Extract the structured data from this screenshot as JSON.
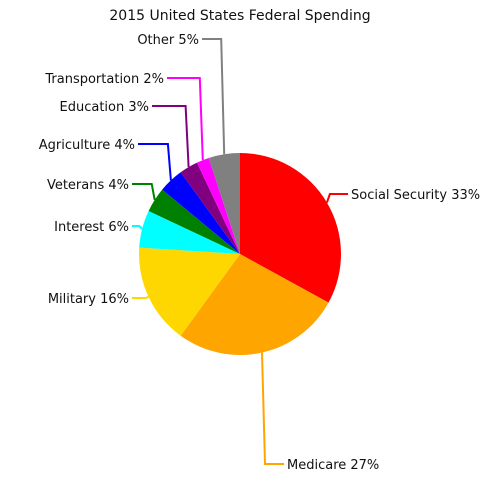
{
  "chart_data": {
    "type": "pie",
    "title": "2015 United States Federal Spending",
    "slices": [
      {
        "label": "Social Security 33%",
        "name": "Social Security",
        "value": 33,
        "color": "#ff0000"
      },
      {
        "label": "Medicare 27%",
        "name": "Medicare",
        "value": 27,
        "color": "#ffa500"
      },
      {
        "label": "Military 16%",
        "name": "Military",
        "value": 16,
        "color": "#ffd700"
      },
      {
        "label": "Interest 6%",
        "name": "Interest",
        "value": 6,
        "color": "#00ffff"
      },
      {
        "label": "Veterans 4%",
        "name": "Veterans",
        "value": 4,
        "color": "#008000"
      },
      {
        "label": "Agriculture 4%",
        "name": "Agriculture",
        "value": 4,
        "color": "#0000ff"
      },
      {
        "label": "Education 3%",
        "name": "Education",
        "value": 3,
        "color": "#800080"
      },
      {
        "label": "Transportation 2%",
        "name": "Transportation",
        "value": 2,
        "color": "#ff00ff"
      },
      {
        "label": "Other 5%",
        "name": "Other",
        "value": 5,
        "color": "#808080"
      }
    ],
    "start_angle": "12 o'clock",
    "direction": "clockwise",
    "legend": "none"
  }
}
